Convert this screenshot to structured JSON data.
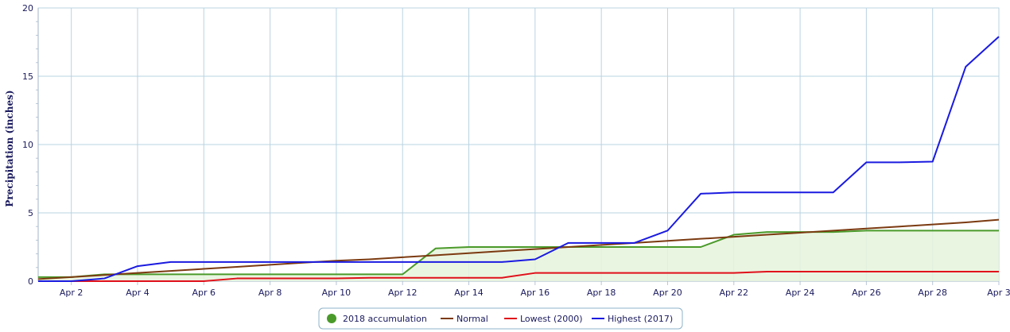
{
  "chart_data": {
    "type": "line",
    "ylabel": "Precipitation (inches)",
    "xlabel": "",
    "ylim": [
      0,
      20
    ],
    "xlim": [
      1,
      30
    ],
    "grid": true,
    "legend_position": "bottom-center",
    "y_ticks": [
      {
        "value": 0,
        "label": "0"
      },
      {
        "value": 5,
        "label": "5"
      },
      {
        "value": 10,
        "label": "10"
      },
      {
        "value": 15,
        "label": "15"
      },
      {
        "value": 20,
        "label": "20"
      }
    ],
    "x_ticks": [
      {
        "day": 2,
        "label": "Apr 2"
      },
      {
        "day": 4,
        "label": "Apr 4"
      },
      {
        "day": 6,
        "label": "Apr 6"
      },
      {
        "day": 8,
        "label": "Apr 8"
      },
      {
        "day": 10,
        "label": "Apr 10"
      },
      {
        "day": 12,
        "label": "Apr 12"
      },
      {
        "day": 14,
        "label": "Apr 14"
      },
      {
        "day": 16,
        "label": "Apr 16"
      },
      {
        "day": 18,
        "label": "Apr 18"
      },
      {
        "day": 20,
        "label": "Apr 20"
      },
      {
        "day": 22,
        "label": "Apr 22"
      },
      {
        "day": 24,
        "label": "Apr 24"
      },
      {
        "day": 26,
        "label": "Apr 26"
      },
      {
        "day": 28,
        "label": "Apr 28"
      },
      {
        "day": 30,
        "label": "Apr 3"
      }
    ],
    "x": [
      1,
      2,
      3,
      4,
      5,
      6,
      7,
      8,
      9,
      10,
      11,
      12,
      13,
      14,
      15,
      16,
      17,
      18,
      19,
      20,
      21,
      22,
      23,
      24,
      25,
      26,
      27,
      28,
      29,
      30
    ],
    "series": [
      {
        "name": "2018 accumulation",
        "kind": "area",
        "color": "#4a9a2a",
        "values": [
          0.3,
          0.3,
          0.5,
          0.5,
          0.5,
          0.5,
          0.5,
          0.5,
          0.5,
          0.5,
          0.5,
          0.5,
          2.4,
          2.5,
          2.5,
          2.5,
          2.5,
          2.5,
          2.5,
          2.5,
          2.5,
          3.4,
          3.6,
          3.6,
          3.6,
          3.7,
          3.7,
          3.7,
          3.7,
          3.7
        ]
      },
      {
        "name": "Normal",
        "kind": "line",
        "color": "#7b3a10",
        "values": [
          0.15,
          0.3,
          0.45,
          0.6,
          0.75,
          0.9,
          1.05,
          1.2,
          1.35,
          1.5,
          1.6,
          1.75,
          1.9,
          2.05,
          2.2,
          2.35,
          2.5,
          2.65,
          2.8,
          2.95,
          3.1,
          3.25,
          3.4,
          3.55,
          3.7,
          3.85,
          4.0,
          4.15,
          4.3,
          4.5
        ]
      },
      {
        "name": "Lowest (2000)",
        "kind": "line",
        "color": "#e0101a",
        "values": [
          0,
          0,
          0,
          0,
          0,
          0,
          0.2,
          0.2,
          0.2,
          0.2,
          0.25,
          0.25,
          0.25,
          0.25,
          0.25,
          0.6,
          0.6,
          0.6,
          0.6,
          0.6,
          0.6,
          0.6,
          0.7,
          0.7,
          0.7,
          0.7,
          0.7,
          0.7,
          0.7,
          0.7
        ]
      },
      {
        "name": "Highest (2017)",
        "kind": "line",
        "color": "#1a1ae0",
        "values": [
          0,
          0,
          0.2,
          1.1,
          1.4,
          1.4,
          1.4,
          1.4,
          1.4,
          1.4,
          1.4,
          1.4,
          1.4,
          1.4,
          1.4,
          1.6,
          2.8,
          2.8,
          2.8,
          3.7,
          6.4,
          6.5,
          6.5,
          6.5,
          6.5,
          8.7,
          8.7,
          8.75,
          15.7,
          17.9
        ]
      }
    ]
  }
}
